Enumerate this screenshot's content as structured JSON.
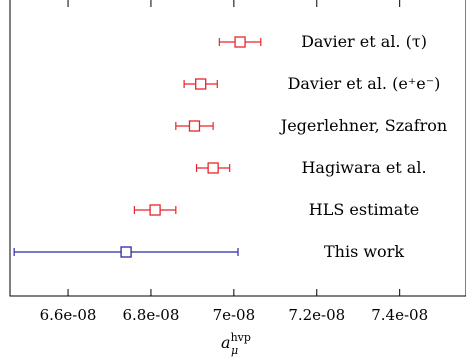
{
  "chart_data": {
    "type": "scatter",
    "orientation": "horizontal-errorbar",
    "xlabel_base": "a",
    "xlabel_sub": "μ",
    "xlabel_sup": "hvp",
    "xlim": [
      6.46e-08,
      7.56e-08
    ],
    "xticks": [
      6.6e-08,
      6.8e-08,
      7e-08,
      7.2e-08,
      7.4e-08
    ],
    "xtick_labels": [
      "6.6e-08",
      "6.8e-08",
      "7e-08",
      "7.2e-08",
      "7.4e-08"
    ],
    "grid": false,
    "legend": "none",
    "marker": "open-square",
    "series": [
      {
        "label": "Davier et al. (τ)",
        "value": 7.015e-08,
        "err_low": 5e-10,
        "err_high": 5e-10,
        "color": "#e8252a"
      },
      {
        "label": "Davier et al. (e⁺e⁻)",
        "value": 6.92e-08,
        "err_low": 4e-10,
        "err_high": 4e-10,
        "color": "#e8252a"
      },
      {
        "label": "Jegerlehner, Szafron",
        "value": 6.905e-08,
        "err_low": 4.5e-10,
        "err_high": 4.5e-10,
        "color": "#e8252a"
      },
      {
        "label": "Hagiwara et al.",
        "value": 6.95e-08,
        "err_low": 4e-10,
        "err_high": 4e-10,
        "color": "#e8252a"
      },
      {
        "label": "HLS estimate",
        "value": 6.81e-08,
        "err_low": 5e-10,
        "err_high": 5e-10,
        "color": "#e8252a"
      },
      {
        "label": "This work",
        "value": 6.74e-08,
        "err_low": 2.7e-09,
        "err_high": 2.7e-09,
        "color": "#2a2aa8"
      }
    ]
  }
}
